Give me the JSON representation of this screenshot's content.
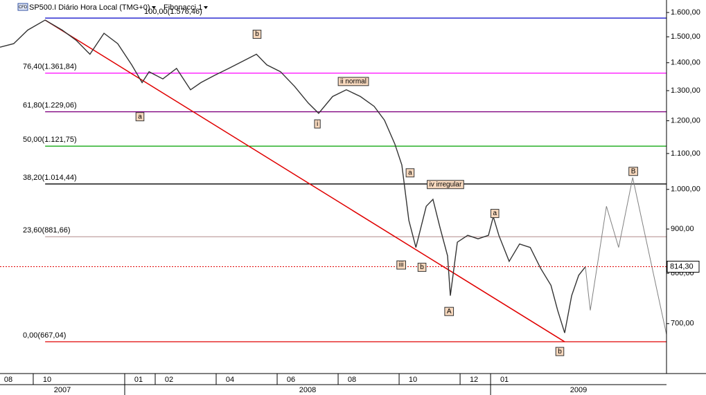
{
  "chart_data": {
    "type": "line",
    "title": "SP500.I Diário Hora Local (TMG+0)",
    "badge": "CFD",
    "study": "Fibonacci 1",
    "log_scale": true,
    "x": [
      7.91,
      8.36,
      8.82,
      9.39,
      9.95,
      10.41,
      10.86,
      11.32,
      11.77,
      12.23,
      12.57,
      12.8,
      13.25,
      13.7,
      14.16,
      14.5,
      14.95,
      15.41,
      15.86,
      16.32,
      16.66,
      17.11,
      17.57,
      18.02,
      18.36,
      18.82,
      19.27,
      19.73,
      20.18,
      20.52,
      20.86,
      21.09,
      21.32,
      21.55,
      21.89,
      22.11,
      22.34,
      22.59,
      22.68,
      22.91,
      23.25,
      23.59,
      23.93,
      24.09,
      24.27,
      24.61,
      24.95,
      25.3,
      25.64,
      25.98,
      26.2,
      26.43,
      26.66,
      26.89,
      27.11
    ],
    "series": [
      {
        "color": "#333333",
        "values": [
          1459,
          1473,
          1527,
          1568,
          1527,
          1486,
          1432,
          1514,
          1473,
          1392,
          1328,
          1367,
          1341,
          1379,
          1303,
          1328,
          1354,
          1379,
          1405,
          1432,
          1392,
          1367,
          1315,
          1258,
          1224,
          1280,
          1303,
          1280,
          1247,
          1202,
          1128,
          1067,
          921,
          857,
          956,
          974,
          904,
          838,
          754,
          869,
          885,
          877,
          885,
          930,
          885,
          826,
          865,
          857,
          811,
          775,
          725,
          683,
          754,
          796,
          814
        ]
      }
    ],
    "projection": {
      "color": "#808080",
      "x": [
        27.11,
        27.27,
        27.8,
        28.2,
        28.66,
        29.77
      ],
      "values": [
        814,
        725,
        956,
        857,
        1032,
        680
      ]
    },
    "trendline": {
      "color": "#e00000",
      "x": [
        9.39,
        26.43
      ],
      "values": [
        1568,
        667
      ]
    },
    "fib_levels": [
      {
        "label": "100,00(1.576,46)",
        "value": 1576.46,
        "color": "#0000c8"
      },
      {
        "label": "76,40(1.361,84)",
        "value": 1361.84,
        "color": "#ff00ff"
      },
      {
        "label": "61,80(1.229,06)",
        "value": 1229.06,
        "color": "#800080"
      },
      {
        "label": "50,00(1.121,75)",
        "value": 1121.75,
        "color": "#00a000"
      },
      {
        "label": "38,20(1.014,44)",
        "value": 1014.44,
        "color": "#000000"
      },
      {
        "label": "23,60(881,66)",
        "value": 881.66,
        "color": "#c0a0a0"
      },
      {
        "label": "0,00(667,04)",
        "value": 667.04,
        "color": "#e00000"
      }
    ],
    "last_price": {
      "value": 814.3,
      "label": "814,30",
      "color": "#e00000"
    },
    "annotations": [
      {
        "text": "b",
        "x": 16.34,
        "y": 1510
      },
      {
        "text": "a",
        "x": 12.5,
        "y": 1213
      },
      {
        "text": "ii normal",
        "x": 19.5,
        "y": 1332
      },
      {
        "text": "i",
        "x": 18.32,
        "y": 1190
      },
      {
        "text": "a",
        "x": 21.36,
        "y": 1045
      },
      {
        "text": "iv irregular",
        "x": 22.52,
        "y": 1013
      },
      {
        "text": "iii",
        "x": 21.07,
        "y": 818
      },
      {
        "text": "b",
        "x": 21.75,
        "y": 813
      },
      {
        "text": "A",
        "x": 22.64,
        "y": 723
      },
      {
        "text": "a",
        "x": 24.14,
        "y": 938
      },
      {
        "text": "b",
        "x": 26.27,
        "y": 650
      },
      {
        "text": "B",
        "x": 28.68,
        "y": 1049
      }
    ],
    "xlim": [
      7.91,
      29.77
    ],
    "ylim": [
      613,
      1654
    ],
    "xticks": [
      {
        "value": 7,
        "label": "08"
      },
      {
        "value": 9,
        "label": "10"
      },
      {
        "value": 12,
        "label": "01"
      },
      {
        "value": 13,
        "label": "02"
      },
      {
        "value": 15,
        "label": "04"
      },
      {
        "value": 17,
        "label": "06"
      },
      {
        "value": 19,
        "label": "08"
      },
      {
        "value": 21,
        "label": "10"
      },
      {
        "value": 23,
        "label": "12"
      },
      {
        "value": 24,
        "label": "01"
      }
    ],
    "year_ticks": [
      {
        "value": 0,
        "label": "2007"
      },
      {
        "value": 12,
        "label": "2008"
      },
      {
        "value": 24,
        "label": "2009"
      }
    ],
    "yticks": [
      {
        "value": 1600,
        "label": "1.600,00"
      },
      {
        "value": 1500,
        "label": "1.500,00"
      },
      {
        "value": 1400,
        "label": "1.400,00"
      },
      {
        "value": 1300,
        "label": "1.300,00"
      },
      {
        "value": 1200,
        "label": "1.200,00"
      },
      {
        "value": 1100,
        "label": "1.100,00"
      },
      {
        "value": 1000,
        "label": "1.000,00"
      },
      {
        "value": 900,
        "label": "900,00"
      },
      {
        "value": 800,
        "label": "800,00"
      },
      {
        "value": 700,
        "label": "700,00"
      }
    ]
  }
}
